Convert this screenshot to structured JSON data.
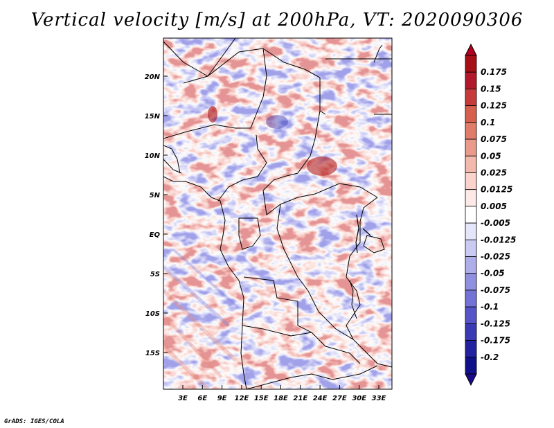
{
  "title": "Vertical velocity [m/s] at 200hPa, VT: 2020090306",
  "credit": "GrADS: IGES/COLA",
  "map": {
    "lat_labels": [
      "20N",
      "15N",
      "10N",
      "5N",
      "EQ",
      "5S",
      "10S",
      "15S"
    ],
    "lon_labels": [
      "3E",
      "6E",
      "9E",
      "12E",
      "15E",
      "18E",
      "21E",
      "24E",
      "27E",
      "30E",
      "33E"
    ],
    "field": "vertical velocity",
    "pressure_level": "200hPa",
    "valid_time": "2020090306"
  },
  "colorbar": {
    "labels": [
      "0.175",
      "0.15",
      "0.125",
      "0.1",
      "0.075",
      "0.05",
      "0.025",
      "0.0125",
      "0.005",
      "-0.005",
      "-0.0125",
      "-0.025",
      "-0.05",
      "-0.075",
      "-0.1",
      "-0.125",
      "-0.175",
      "-0.2"
    ],
    "colors": [
      "#a50f15",
      "#b2182b",
      "#c73a3a",
      "#d6604d",
      "#e07c6a",
      "#ea9a8a",
      "#f3b9ad",
      "#fad4cc",
      "#fde9e5",
      "#ffffff",
      "#e6e6fa",
      "#cacaf2",
      "#aeaeea",
      "#9090e0",
      "#7373d6",
      "#5555c8",
      "#3a3ab5",
      "#2222a0",
      "#10108a"
    ],
    "max_color": "#b2001f",
    "min_color": "#1a0a8a"
  }
}
